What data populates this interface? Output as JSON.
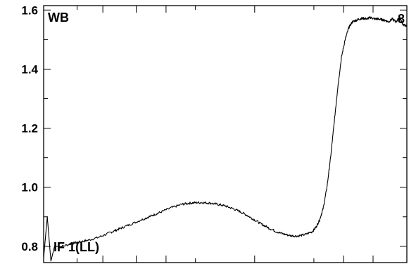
{
  "chart_data": {
    "type": "line",
    "title": "",
    "xlabel": "",
    "ylabel": "",
    "ylim": [
      0.745,
      1.615
    ],
    "xlim": [
      0,
      1
    ],
    "yticks": [
      {
        "value": 0.8,
        "label": "0.8"
      },
      {
        "value": 1.0,
        "label": "1.0"
      },
      {
        "value": 1.2,
        "label": "1.2"
      },
      {
        "value": 1.4,
        "label": "1.4"
      },
      {
        "value": 1.6,
        "label": "1.6"
      }
    ],
    "x_minor_ticks": [
      0.092,
      0.418,
      0.744
    ],
    "x_major_ticks": [
      0.0,
      0.163,
      0.255,
      0.337,
      0.581,
      0.826,
      0.907,
      1.0
    ],
    "annotations": {
      "top_left": "WB",
      "top_right": "8",
      "bottom_left": "IF 1(LL)"
    },
    "series": [
      {
        "x": [
          0.0,
          0.01,
          0.02,
          0.03,
          0.05,
          0.08,
          0.1,
          0.12,
          0.15,
          0.18,
          0.2,
          0.22,
          0.25,
          0.28,
          0.3,
          0.32,
          0.35,
          0.38,
          0.4,
          0.42,
          0.44,
          0.46,
          0.48,
          0.5,
          0.52,
          0.54,
          0.56,
          0.58,
          0.6,
          0.62,
          0.64,
          0.66,
          0.68,
          0.7,
          0.72,
          0.74,
          0.75,
          0.76,
          0.77,
          0.78,
          0.79,
          0.8,
          0.81,
          0.82,
          0.83,
          0.84,
          0.85,
          0.86,
          0.87,
          0.88,
          0.89,
          0.9,
          0.91,
          0.92,
          0.93,
          0.94,
          0.95,
          0.96,
          0.97,
          0.98,
          0.99,
          1.0
        ],
        "y": [
          0.76,
          0.9,
          0.75,
          0.8,
          0.8,
          0.81,
          0.815,
          0.82,
          0.83,
          0.845,
          0.855,
          0.865,
          0.88,
          0.895,
          0.905,
          0.915,
          0.93,
          0.942,
          0.946,
          0.948,
          0.948,
          0.946,
          0.942,
          0.937,
          0.928,
          0.918,
          0.905,
          0.89,
          0.875,
          0.862,
          0.85,
          0.842,
          0.836,
          0.835,
          0.84,
          0.85,
          0.865,
          0.89,
          0.93,
          1.0,
          1.1,
          1.22,
          1.34,
          1.44,
          1.5,
          1.54,
          1.56,
          1.565,
          1.57,
          1.572,
          1.57,
          1.575,
          1.57,
          1.57,
          1.568,
          1.565,
          1.56,
          1.57,
          1.56,
          1.575,
          1.55,
          1.545
        ]
      }
    ]
  }
}
